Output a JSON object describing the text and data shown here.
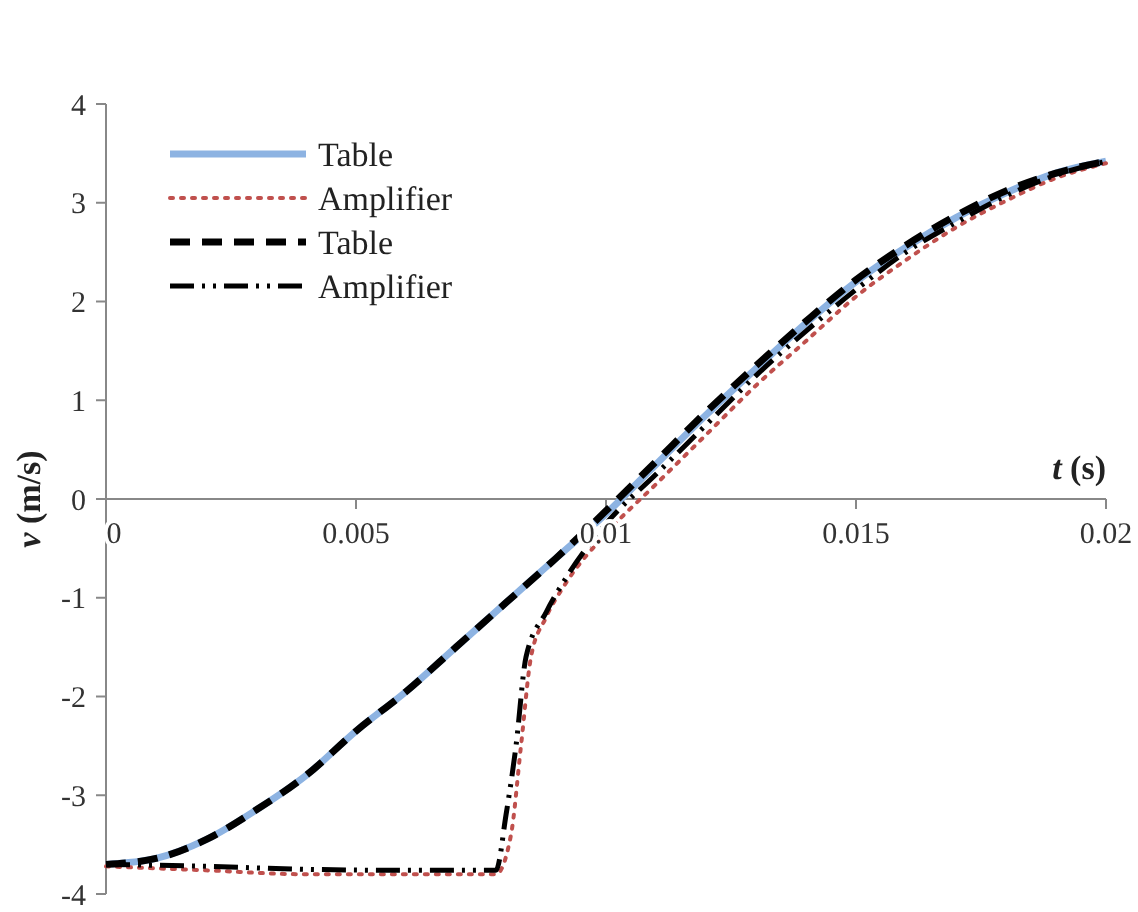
{
  "chart_data": {
    "type": "line",
    "xlabel": "t (s)",
    "ylabel": "v (m/s)",
    "xlim": [
      0,
      0.02
    ],
    "ylim": [
      -4,
      4
    ],
    "xticks": [
      0,
      0.005,
      0.01,
      0.015,
      0.02
    ],
    "yticks": [
      -4,
      -3,
      -2,
      -1,
      0,
      1,
      2,
      3,
      4
    ],
    "grid": false,
    "legend": "top left",
    "marker": "none",
    "series": [
      {
        "name": "Table",
        "color": "#8db3e2",
        "line_style": "solid",
        "x": [
          0,
          0.001,
          0.002,
          0.003,
          0.004,
          0.005,
          0.006,
          0.007,
          0.008,
          0.009,
          0.01,
          0.011,
          0.012,
          0.013,
          0.014,
          0.015,
          0.016,
          0.017,
          0.018,
          0.019,
          0.02
        ],
        "values": [
          -3.7,
          -3.64,
          -3.45,
          -3.15,
          -2.8,
          -2.35,
          -1.95,
          -1.5,
          -1.05,
          -0.6,
          -0.15,
          0.35,
          0.85,
          1.32,
          1.78,
          2.2,
          2.55,
          2.85,
          3.1,
          3.3,
          3.42
        ]
      },
      {
        "name": "Amplifier",
        "color": "#c0504d",
        "line_style": "dotted",
        "x": [
          0,
          0.002,
          0.004,
          0.006,
          0.0078,
          0.0081,
          0.0083,
          0.0085,
          0.0088,
          0.0092,
          0.01,
          0.011,
          0.012,
          0.013,
          0.014,
          0.015,
          0.016,
          0.017,
          0.018,
          0.019,
          0.02
        ],
        "values": [
          -3.72,
          -3.76,
          -3.8,
          -3.8,
          -3.8,
          -3.4,
          -2.5,
          -1.6,
          -1.2,
          -0.85,
          -0.35,
          0.15,
          0.65,
          1.15,
          1.6,
          2.05,
          2.42,
          2.75,
          3.02,
          3.25,
          3.4
        ]
      },
      {
        "name": "Table",
        "color": "#000000",
        "line_style": "dashed",
        "x": [
          0,
          0.001,
          0.002,
          0.003,
          0.004,
          0.005,
          0.006,
          0.007,
          0.008,
          0.009,
          0.01,
          0.011,
          0.012,
          0.013,
          0.014,
          0.015,
          0.016,
          0.017,
          0.018,
          0.019,
          0.02
        ],
        "values": [
          -3.7,
          -3.64,
          -3.45,
          -3.15,
          -2.8,
          -2.35,
          -1.95,
          -1.5,
          -1.05,
          -0.6,
          -0.12,
          0.38,
          0.88,
          1.35,
          1.8,
          2.22,
          2.57,
          2.87,
          3.12,
          3.3,
          3.42
        ]
      },
      {
        "name": "Amplifier",
        "color": "#000000",
        "line_style": "dashdot",
        "x": [
          0,
          0.002,
          0.004,
          0.006,
          0.0078,
          0.008,
          0.0082,
          0.0084,
          0.0088,
          0.0092,
          0.01,
          0.011,
          0.012,
          0.013,
          0.014,
          0.015,
          0.016,
          0.017,
          0.018,
          0.019,
          0.02
        ],
        "values": [
          -3.7,
          -3.72,
          -3.75,
          -3.76,
          -3.76,
          -3.2,
          -2.5,
          -1.6,
          -1.15,
          -0.8,
          -0.25,
          0.25,
          0.75,
          1.25,
          1.7,
          2.12,
          2.5,
          2.8,
          3.07,
          3.28,
          3.42
        ]
      }
    ]
  }
}
